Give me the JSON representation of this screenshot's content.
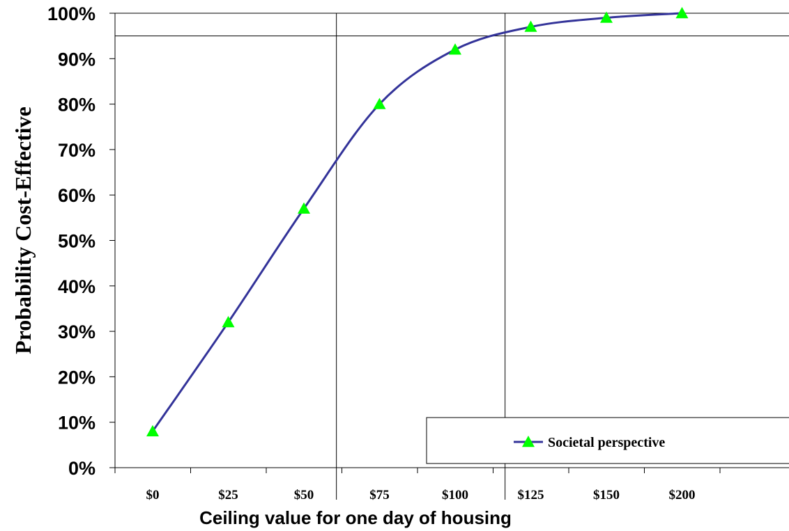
{
  "chart_data": {
    "type": "line",
    "title": "",
    "xlabel": "Ceiling value for one day of housing",
    "ylabel": "Probability Cost-Effective",
    "categories": [
      "$0",
      "$25",
      "$50",
      "$75",
      "$100",
      "$125",
      "$150",
      "$200"
    ],
    "y_ticks": [
      "0%",
      "10%",
      "20%",
      "30%",
      "40%",
      "50%",
      "60%",
      "70%",
      "80%",
      "90%",
      "100%"
    ],
    "ylim": [
      0,
      100
    ],
    "series": [
      {
        "name": "Societal perspective",
        "color": "#333399",
        "marker": "triangle",
        "marker_color": "#00ff00",
        "x": [
          "$0",
          "$25",
          "$50",
          "$75",
          "$100",
          "$125",
          "$150",
          "$200"
        ],
        "values": [
          8,
          32,
          57,
          80,
          92,
          97,
          99,
          100
        ]
      }
    ],
    "reference_lines": {
      "horizontal_y": 95,
      "vertical_x": [
        61,
        117
      ]
    },
    "legend": {
      "placement": "bottom-right"
    },
    "grid": false
  }
}
